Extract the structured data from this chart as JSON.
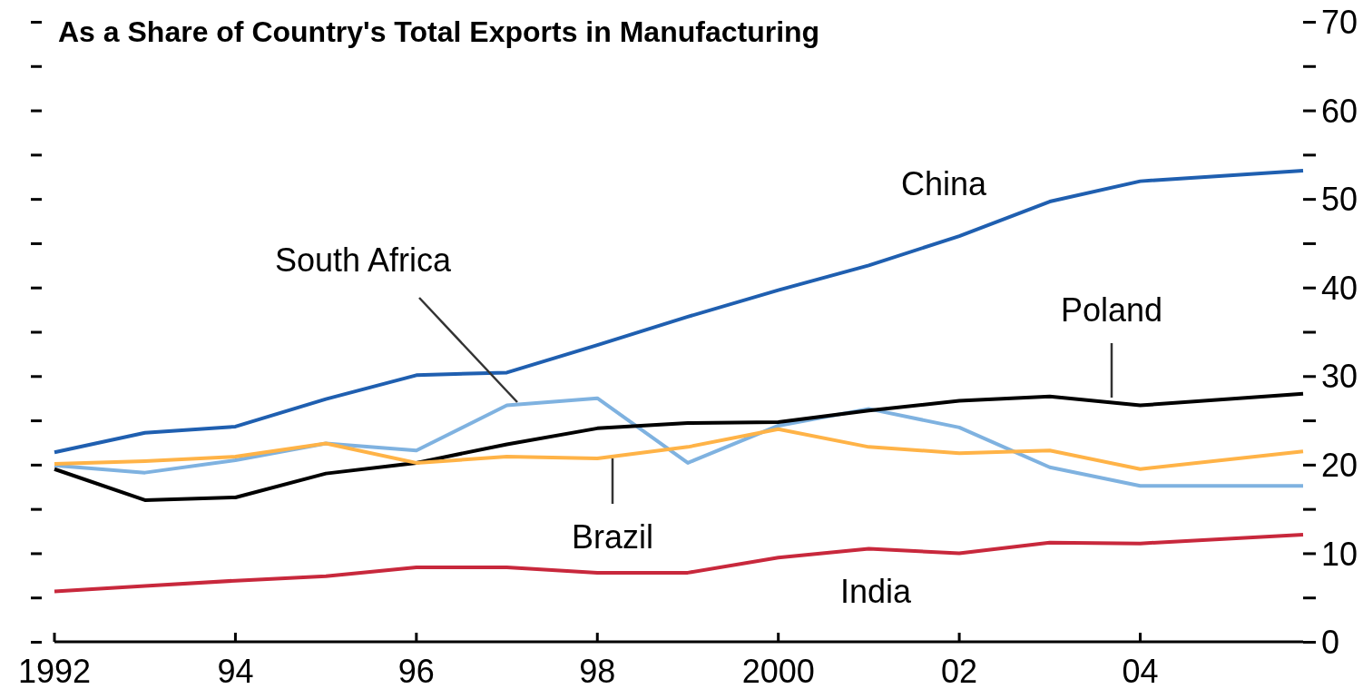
{
  "chart_data": {
    "type": "line",
    "title": "As a Share of Country's Total Exports in Manufacturing",
    "x": [
      1992,
      1993,
      1994,
      1995,
      1996,
      1997,
      1998,
      1999,
      2000,
      2001,
      2002,
      2003,
      2004,
      2005.8
    ],
    "xlim": [
      1992,
      2005.8
    ],
    "xticks": [
      {
        "value": 1992,
        "label": "1992"
      },
      {
        "value": 1994,
        "label": "94"
      },
      {
        "value": 1996,
        "label": "96"
      },
      {
        "value": 1998,
        "label": "98"
      },
      {
        "value": 2000,
        "label": "2000"
      },
      {
        "value": 2002,
        "label": "02"
      },
      {
        "value": 2004,
        "label": "04"
      }
    ],
    "ylim": [
      0,
      70
    ],
    "yticks": [
      0,
      {
        "value": 5,
        "label": null
      },
      10,
      {
        "value": 15,
        "label": null
      },
      20,
      {
        "value": 25,
        "label": null
      },
      30,
      {
        "value": 35,
        "label": null
      },
      40,
      {
        "value": 45,
        "label": null
      },
      50,
      {
        "value": 55,
        "label": null
      },
      60,
      {
        "value": 65,
        "label": null
      },
      70
    ],
    "grid": false,
    "legend": false,
    "marker": "none",
    "line_style": "solid",
    "series": [
      {
        "name": "China",
        "color": "#1f5fb0",
        "values": [
          21.4,
          23.6,
          24.3,
          27.4,
          30.1,
          30.4,
          33.5,
          36.7,
          39.7,
          42.5,
          45.8,
          49.7,
          52,
          53.2
        ]
      },
      {
        "name": "South Africa",
        "color": "#7fb2e0",
        "values": [
          19.9,
          19.1,
          20.5,
          22.4,
          21.6,
          26.7,
          27.5,
          20.2,
          24.4,
          26.3,
          24.2,
          19.7,
          17.6,
          17.6
        ]
      },
      {
        "name": "Poland",
        "color": "#000000",
        "values": [
          19.5,
          16,
          16.3,
          19,
          20.2,
          22.3,
          24.1,
          24.7,
          24.8,
          26.1,
          27.2,
          27.7,
          26.7,
          28
        ]
      },
      {
        "name": "Brazil",
        "color": "#ffb347",
        "values": [
          20.1,
          20.4,
          20.9,
          22.4,
          20.2,
          20.9,
          20.7,
          22,
          24,
          22,
          21.3,
          21.6,
          19.5,
          21.5
        ]
      },
      {
        "name": "India",
        "color": "#c8283c",
        "values": [
          5.7,
          6.3,
          6.9,
          7.4,
          8.4,
          8.4,
          7.8,
          7.8,
          9.5,
          10.5,
          10,
          11.2,
          11.1,
          12.1
        ]
      }
    ]
  }
}
